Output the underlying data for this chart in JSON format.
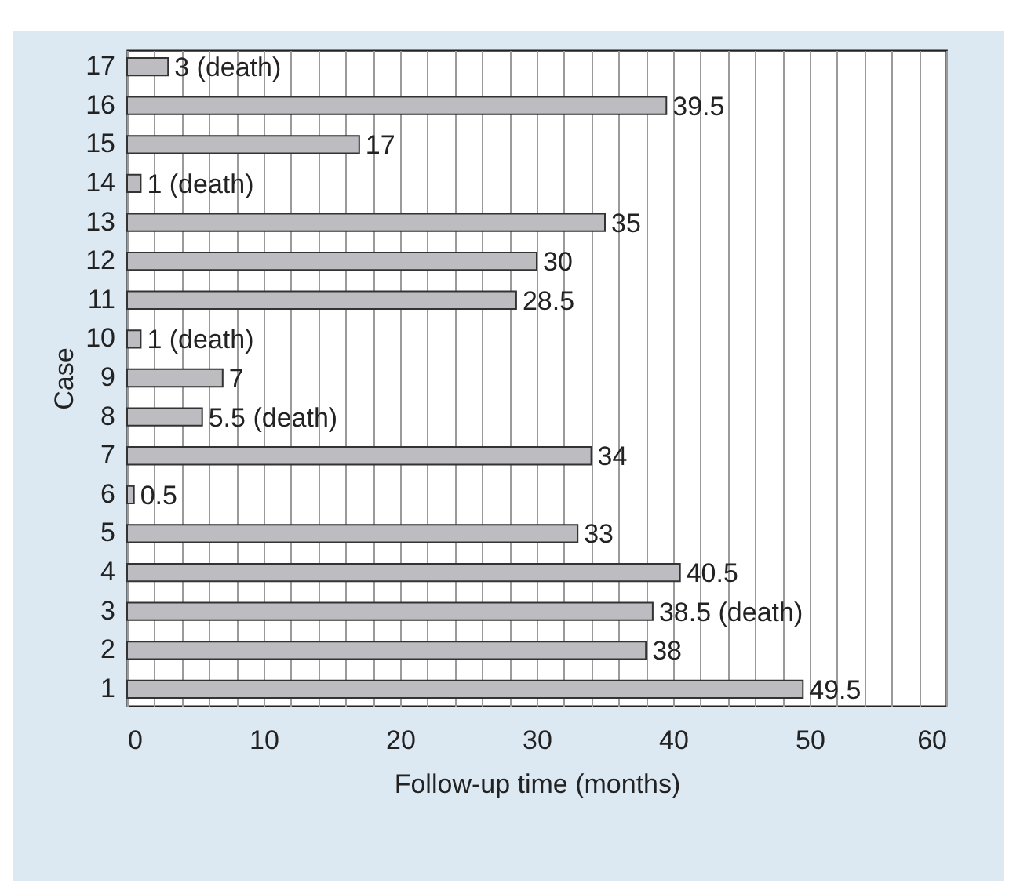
{
  "chart_data": {
    "type": "bar",
    "orientation": "horizontal",
    "xlabel": "Follow-up time (months)",
    "ylabel": "Case",
    "categories": [
      "17",
      "16",
      "15",
      "14",
      "13",
      "12",
      "11",
      "10",
      "9",
      "8",
      "7",
      "6",
      "5",
      "4",
      "3",
      "2",
      "1"
    ],
    "values": [
      3,
      39.5,
      17,
      1,
      35,
      30,
      28.5,
      1,
      7,
      5.5,
      34,
      0.5,
      33,
      40.5,
      38.5,
      38,
      49.5
    ],
    "value_labels": [
      "3 (death)",
      "39.5",
      "17",
      "1 (death)",
      "35",
      "30",
      "28.5",
      "1 (death)",
      "7",
      "5.5 (death)",
      "34",
      "0.5",
      "33",
      "40.5",
      "38.5 (death)",
      "38",
      "49.5"
    ],
    "color": "#bdbdc1",
    "xlim": [
      0,
      60
    ],
    "xticks": [
      0,
      {
        "value": 2,
        "label": null
      },
      {
        "value": 4,
        "label": null
      },
      {
        "value": 6,
        "label": null
      },
      {
        "value": 8,
        "label": null
      },
      10,
      {
        "value": 12,
        "label": null
      },
      {
        "value": 14,
        "label": null
      },
      {
        "value": 16,
        "label": null
      },
      {
        "value": 18,
        "label": null
      },
      20,
      {
        "value": 22,
        "label": null
      },
      {
        "value": 24,
        "label": null
      },
      {
        "value": 26,
        "label": null
      },
      {
        "value": 28,
        "label": null
      },
      30,
      {
        "value": 32,
        "label": null
      },
      {
        "value": 34,
        "label": null
      },
      {
        "value": 36,
        "label": null
      },
      {
        "value": 38,
        "label": null
      },
      40,
      {
        "value": 42,
        "label": null
      },
      {
        "value": 44,
        "label": null
      },
      {
        "value": 46,
        "label": null
      },
      {
        "value": 48,
        "label": null
      },
      50,
      {
        "value": 52,
        "label": null
      },
      {
        "value": 54,
        "label": null
      },
      {
        "value": 56,
        "label": null
      },
      {
        "value": 58,
        "label": null
      },
      60
    ],
    "grid": "x"
  }
}
